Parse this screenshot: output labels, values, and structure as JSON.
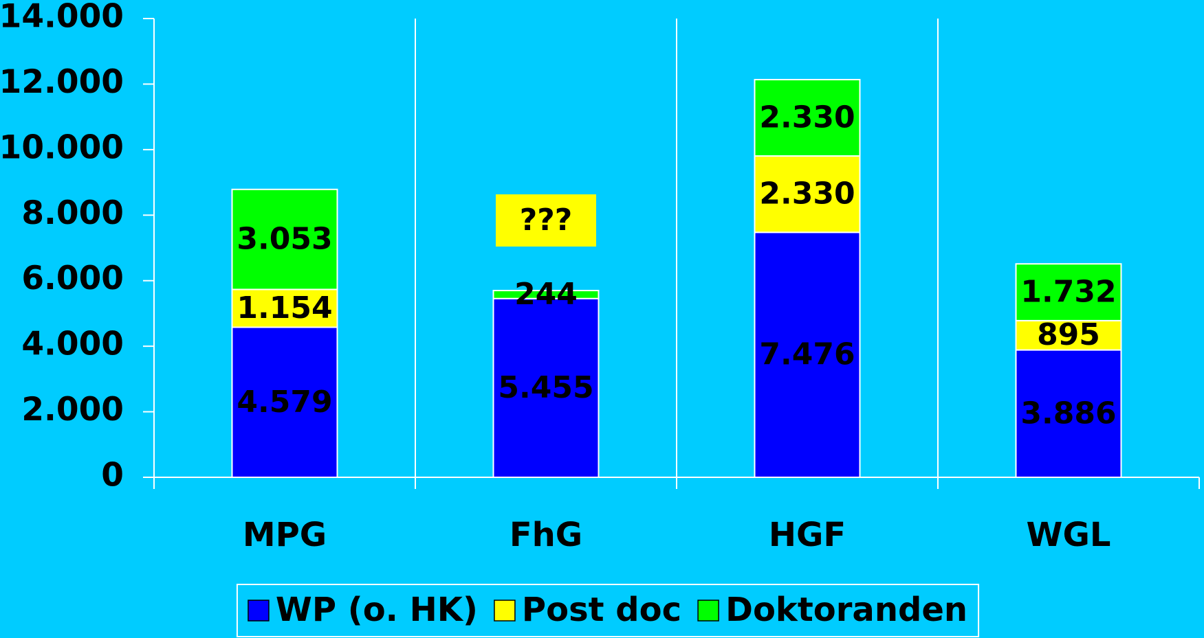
{
  "chart_data": {
    "type": "bar",
    "stacked": true,
    "categories": [
      "MPG",
      "FhG",
      "HGF",
      "WGL"
    ],
    "series": [
      {
        "name": "WP (o. HK)",
        "color": "#0000ff",
        "values": [
          4579,
          5455,
          7476,
          3886
        ],
        "value_labels": [
          "4.579",
          "5.455",
          "7.476",
          "3.886"
        ]
      },
      {
        "name": "Post doc",
        "color": "#ffff00",
        "values": [
          1154,
          null,
          2330,
          895
        ],
        "value_labels": [
          "1.154",
          null,
          "2.330",
          "895"
        ]
      },
      {
        "name": "Doktoranden",
        "color": "#00ff00",
        "values": [
          3053,
          244,
          2330,
          1732
        ],
        "value_labels": [
          "3.053",
          "244",
          "2.330",
          "1.732"
        ]
      }
    ],
    "annotation": "???",
    "ylim": [
      0,
      14000
    ],
    "yticks": [
      0,
      {
        "value": 2000,
        "label": "2.000"
      },
      {
        "value": 4000,
        "label": "4.000"
      },
      {
        "value": 6000,
        "label": "6.000"
      },
      {
        "value": 8000,
        "label": "8.000"
      },
      {
        "value": 10000,
        "label": "10.000"
      },
      {
        "value": 12000,
        "label": "12.000"
      },
      {
        "value": 14000,
        "label": "14.000"
      }
    ],
    "legend": "bottom",
    "background": "#00ccff"
  }
}
